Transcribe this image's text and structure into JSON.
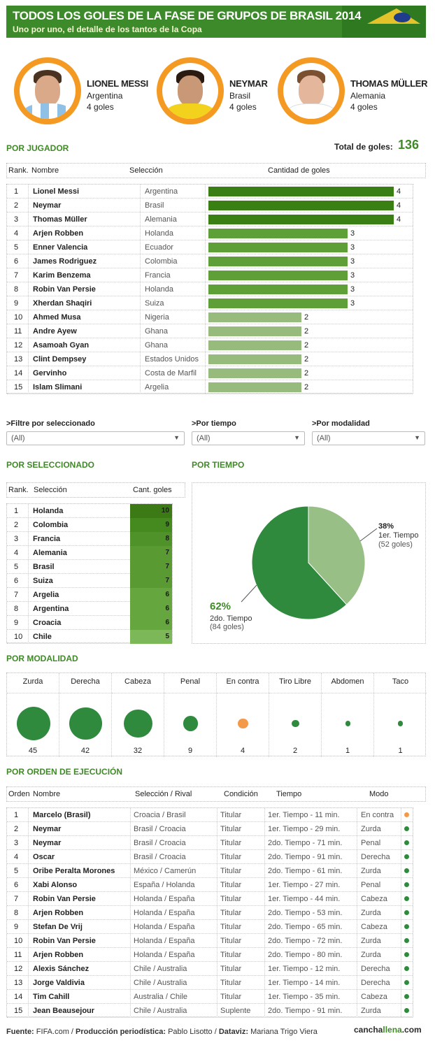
{
  "header": {
    "title": "TODOS LOS GOLES DE LA FASE DE GRUPOS DE BRASIL 2014",
    "subtitle": "Uno por uno, el detalle de los tantos de la Copa"
  },
  "top_players": [
    {
      "name": "LIONEL MESSI",
      "team": "Argentina",
      "goals": "4 goles"
    },
    {
      "name": "NEYMAR",
      "team": "Brasil",
      "goals": "4 goles"
    },
    {
      "name": "THOMAS MÜLLER",
      "team": "Alemania",
      "goals": "4 goles"
    }
  ],
  "por_jugador": {
    "heading": "POR JUGADOR",
    "total_label": "Total de goles:",
    "total_value": "136",
    "columns": [
      "Rank.",
      "Nombre",
      "Selección",
      "Cantidad de goles"
    ],
    "rows": [
      {
        "rank": "1",
        "name": "Lionel Messi",
        "team": "Argentina",
        "goals": 4
      },
      {
        "rank": "2",
        "name": "Neymar",
        "team": "Brasil",
        "goals": 4
      },
      {
        "rank": "3",
        "name": "Thomas Müller",
        "team": "Alemania",
        "goals": 4
      },
      {
        "rank": "4",
        "name": "Arjen Robben",
        "team": "Holanda",
        "goals": 3
      },
      {
        "rank": "5",
        "name": "Enner Valencia",
        "team": "Ecuador",
        "goals": 3
      },
      {
        "rank": "6",
        "name": "James Rodriguez",
        "team": "Colombia",
        "goals": 3
      },
      {
        "rank": "7",
        "name": "Karim Benzema",
        "team": "Francia",
        "goals": 3
      },
      {
        "rank": "8",
        "name": "Robin Van Persie",
        "team": "Holanda",
        "goals": 3
      },
      {
        "rank": "9",
        "name": "Xherdan Shaqiri",
        "team": "Suiza",
        "goals": 3
      },
      {
        "rank": "10",
        "name": "Ahmed Musa",
        "team": "Nigeria",
        "goals": 2
      },
      {
        "rank": "11",
        "name": "Andre Ayew",
        "team": "Ghana",
        "goals": 2
      },
      {
        "rank": "12",
        "name": "Asamoah Gyan",
        "team": "Ghana",
        "goals": 2
      },
      {
        "rank": "13",
        "name": "Clint Dempsey",
        "team": "Estados Unidos",
        "goals": 2
      },
      {
        "rank": "14",
        "name": "Gervinho",
        "team": "Costa de Marfil",
        "goals": 2
      },
      {
        "rank": "15",
        "name": "Islam Slimani",
        "team": "Argelia",
        "goals": 2
      }
    ],
    "bar_colors": {
      "4": "#3a7f14",
      "3": "#5e9f38",
      "2": "#97bb7c"
    }
  },
  "filters": [
    {
      "label": ">Filtre por seleccionado",
      "value": "(All)"
    },
    {
      "label": ">Por tiempo",
      "value": "(All)"
    },
    {
      "label": ">Por modalidad",
      "value": "(All)"
    }
  ],
  "por_seleccionado": {
    "heading": "POR SELECCIONADO",
    "columns": [
      "Rank.",
      "Selección",
      "Cant. goles"
    ],
    "rows": [
      {
        "rank": "1",
        "team": "Holanda",
        "goals": "10",
        "color": "#3b7a14"
      },
      {
        "rank": "2",
        "team": "Colombia",
        "goals": "9",
        "color": "#458a1f"
      },
      {
        "rank": "3",
        "team": "Francia",
        "goals": "8",
        "color": "#4f9229"
      },
      {
        "rank": "4",
        "team": "Alemania",
        "goals": "7",
        "color": "#5a9a33"
      },
      {
        "rank": "5",
        "team": "Brasil",
        "goals": "7",
        "color": "#5a9a33"
      },
      {
        "rank": "6",
        "team": "Suiza",
        "goals": "7",
        "color": "#5a9a33"
      },
      {
        "rank": "7",
        "team": "Argelia",
        "goals": "6",
        "color": "#66a63f"
      },
      {
        "rank": "8",
        "team": "Argentina",
        "goals": "6",
        "color": "#66a63f"
      },
      {
        "rank": "9",
        "team": "Croacia",
        "goals": "6",
        "color": "#66a63f"
      },
      {
        "rank": "10",
        "team": "Chile",
        "goals": "5",
        "color": "#7cb857"
      }
    ]
  },
  "por_tiempo": {
    "heading": "POR TIEMPO",
    "chart_data": {
      "type": "pie",
      "slices": [
        {
          "pct": "38%",
          "label": "1er. Tiempo",
          "count": "(52 goles)",
          "value": 52,
          "color": "#98bf85"
        },
        {
          "pct": "62%",
          "label": "2do. Tiempo",
          "count": "(84 goles)",
          "value": 84,
          "color": "#2f8a3e"
        }
      ]
    }
  },
  "por_modalidad": {
    "heading": "POR MODALIDAD",
    "items": [
      {
        "label": "Zurda",
        "value": 45,
        "color": "#2f8a3e"
      },
      {
        "label": "Derecha",
        "value": 42,
        "color": "#2f8a3e"
      },
      {
        "label": "Cabeza",
        "value": 32,
        "color": "#2f8a3e"
      },
      {
        "label": "Penal",
        "value": 9,
        "color": "#2f8a3e"
      },
      {
        "label": "En contra",
        "value": 4,
        "color": "#f39a4a"
      },
      {
        "label": "Tiro Libre",
        "value": 2,
        "color": "#2f8a3e"
      },
      {
        "label": "Abdomen",
        "value": 1,
        "color": "#2f8a3e"
      },
      {
        "label": "Taco",
        "value": 1,
        "color": "#2f8a3e"
      }
    ]
  },
  "por_orden": {
    "heading": "POR ORDEN DE EJECUCIÓN",
    "columns": [
      "Orden",
      "Nombre",
      "Selección / Rival",
      "Condición",
      "Tiempo",
      "Modo"
    ],
    "rows": [
      {
        "n": "1",
        "name": "Marcelo (Brasil)",
        "match": "Croacia / Brasil",
        "cond": "Titular",
        "time": "1er. Tiempo - 11 min.",
        "mode": "En contra",
        "color": "#f39a4a"
      },
      {
        "n": "2",
        "name": "Neymar",
        "match": "Brasil / Croacia",
        "cond": "Titular",
        "time": "1er. Tiempo - 29 min.",
        "mode": "Zurda",
        "color": "#2f8a3e"
      },
      {
        "n": "3",
        "name": "Neymar",
        "match": "Brasil / Croacia",
        "cond": "Titular",
        "time": "2do. Tiempo - 71 min.",
        "mode": "Penal",
        "color": "#2f8a3e"
      },
      {
        "n": "4",
        "name": "Oscar",
        "match": "Brasil / Croacia",
        "cond": "Titular",
        "time": "2do. Tiempo - 91 min.",
        "mode": "Derecha",
        "color": "#2f8a3e"
      },
      {
        "n": "5",
        "name": "Oribe Peralta Morones",
        "match": "México / Camerún",
        "cond": "Titular",
        "time": "2do. Tiempo - 61 min.",
        "mode": "Zurda",
        "color": "#2f8a3e"
      },
      {
        "n": "6",
        "name": "Xabi Alonso",
        "match": "España / Holanda",
        "cond": "Titular",
        "time": "1er. Tiempo - 27 min.",
        "mode": "Penal",
        "color": "#2f8a3e"
      },
      {
        "n": "7",
        "name": "Robin Van Persie",
        "match": "Holanda / España",
        "cond": "Titular",
        "time": "1er. Tiempo - 44 min.",
        "mode": "Cabeza",
        "color": "#2f8a3e"
      },
      {
        "n": "8",
        "name": "Arjen Robben",
        "match": "Holanda / España",
        "cond": "Titular",
        "time": "2do. Tiempo - 53 min.",
        "mode": "Zurda",
        "color": "#2f8a3e"
      },
      {
        "n": "9",
        "name": "Stefan De Vrij",
        "match": "Holanda / España",
        "cond": "Titular",
        "time": "2do. Tiempo - 65 min.",
        "mode": "Cabeza",
        "color": "#2f8a3e"
      },
      {
        "n": "10",
        "name": "Robin Van Persie",
        "match": "Holanda / España",
        "cond": "Titular",
        "time": "2do. Tiempo - 72 min.",
        "mode": "Zurda",
        "color": "#2f8a3e"
      },
      {
        "n": "11",
        "name": "Arjen Robben",
        "match": "Holanda / España",
        "cond": "Titular",
        "time": "2do. Tiempo - 80 min.",
        "mode": "Zurda",
        "color": "#2f8a3e"
      },
      {
        "n": "12",
        "name": "Alexis Sánchez",
        "match": "Chile / Australia",
        "cond": "Titular",
        "time": "1er. Tiempo - 12 min.",
        "mode": "Derecha",
        "color": "#2f8a3e"
      },
      {
        "n": "13",
        "name": "Jorge Valdivia",
        "match": "Chile / Australia",
        "cond": "Titular",
        "time": "1er. Tiempo - 14 min.",
        "mode": "Derecha",
        "color": "#2f8a3e"
      },
      {
        "n": "14",
        "name": "Tim Cahill",
        "match": "Australia / Chile",
        "cond": "Titular",
        "time": "1er. Tiempo - 35 min.",
        "mode": "Cabeza",
        "color": "#2f8a3e"
      },
      {
        "n": "15",
        "name": "Jean Beausejour",
        "match": "Chile / Australia",
        "cond": "Suplente",
        "time": "2do. Tiempo - 91 min.",
        "mode": "Zurda",
        "color": "#2f8a3e"
      }
    ]
  },
  "footer": {
    "fuente_label": "Fuente:",
    "fuente": "FIFA.com",
    "prod_label": "Producción periodística:",
    "prod": "Pablo Lisotto",
    "dataviz_label": "Dataviz:",
    "dataviz": "Mariana Trigo Viera",
    "logo_a": "cancha",
    "logo_b": "llena",
    "logo_c": ".com"
  }
}
